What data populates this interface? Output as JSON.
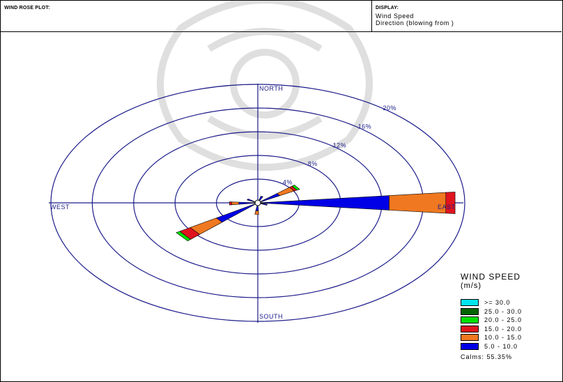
{
  "header": {
    "left_title": "WIND ROSE PLOT:",
    "right_caption": "DISPLAY:",
    "display_line1": "Wind Speed",
    "display_line2": "Direction (blowing from )"
  },
  "chart_data": {
    "type": "wind_rose",
    "directions": [
      "NORTH",
      "EAST",
      "SOUTH",
      "WEST"
    ],
    "rings": [
      {
        "value": 4,
        "label": "4%"
      },
      {
        "value": 8,
        "label": "8%"
      },
      {
        "value": 12,
        "label": "12%"
      },
      {
        "value": 16,
        "label": "16%"
      },
      {
        "value": 20,
        "label": "20%"
      }
    ],
    "speed_bins": [
      {
        "label": ">= 30.0",
        "color": "#00e5ee"
      },
      {
        "label": "25.0 - 30.0",
        "color": "#006400"
      },
      {
        "label": "20.0 - 25.0",
        "color": "#00e000"
      },
      {
        "label": "15.0 - 20.0",
        "color": "#e0141e"
      },
      {
        "label": "10.0 - 15.0",
        "color": "#f07820"
      },
      {
        "label": "5.0 - 10.0",
        "color": "#0000e6"
      }
    ],
    "petals": [
      {
        "direction_deg": 90,
        "segments": {
          "5.0 - 10.0": 12.5,
          "10.0 - 15.0": 5.5,
          "15.0 - 20.0": 0.9
        }
      },
      {
        "direction_deg": 232,
        "segments": {
          "5.0 - 10.0": 4.5,
          "10.0 - 15.0": 3.0,
          "15.0 - 20.0": 1.2,
          "20.0 - 25.0": 0.4
        }
      },
      {
        "direction_deg": 55,
        "segments": {
          "5.0 - 10.0": 2.2,
          "10.0 - 15.0": 1.6,
          "15.0 - 20.0": 0.3,
          "20.0 - 25.0": 0.3
        }
      },
      {
        "direction_deg": 268,
        "segments": {
          "5.0 - 10.0": 1.6,
          "10.0 - 15.0": 0.7,
          "15.0 - 20.0": 0.2
        }
      },
      {
        "direction_deg": 183,
        "segments": {
          "5.0 - 10.0": 1.1,
          "10.0 - 15.0": 0.6
        }
      },
      {
        "direction_deg": 20,
        "segments": {
          "5.0 - 10.0": 0.9
        }
      },
      {
        "direction_deg": 300,
        "segments": {
          "5.0 - 10.0": 0.9
        }
      },
      {
        "direction_deg": 110,
        "segments": {
          "5.0 - 10.0": 0.7
        }
      }
    ],
    "legend_title": "WIND SPEED",
    "legend_unit": "(m/s)",
    "calms": "Calms: 55.35%"
  }
}
